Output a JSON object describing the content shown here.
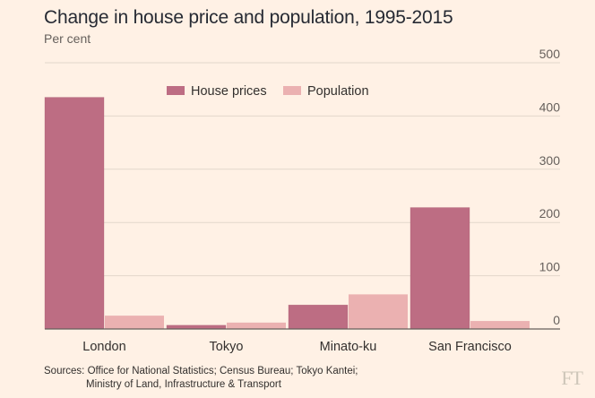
{
  "chart_data": {
    "type": "bar",
    "title": "Change in house price and population, 1995-2015",
    "subtitle": "Per cent",
    "categories": [
      "London",
      "Tokyo",
      "Minato-ku",
      "San Francisco"
    ],
    "series": [
      {
        "name": "House prices",
        "values": [
          435,
          7,
          45,
          228
        ],
        "color": "#bd6d83"
      },
      {
        "name": "Population",
        "values": [
          25,
          12,
          65,
          15
        ],
        "color": "#ebb1b1"
      }
    ],
    "yticks": [
      0,
      100,
      200,
      300,
      400,
      500
    ],
    "ylim": [
      0,
      500
    ],
    "grid": true,
    "legend_position": "top-center"
  },
  "sources": {
    "line1": "Sources: Office for National Statistics; Census Bureau; Tokyo Kantei;",
    "line2": "Ministry of Land, Infrastructure & Transport"
  },
  "logo": "FT",
  "colors": {
    "background": "#fff1e5",
    "gridline": "#e2d7cb",
    "axis": "#66605c"
  }
}
